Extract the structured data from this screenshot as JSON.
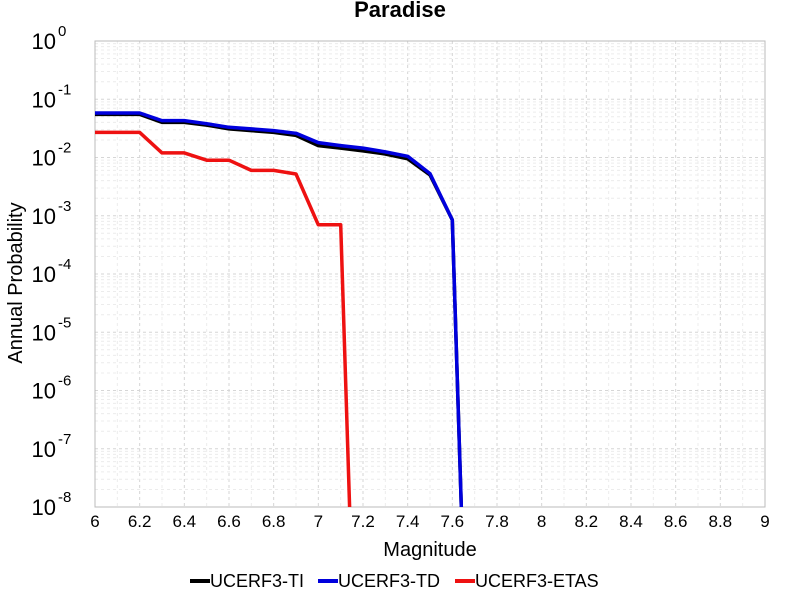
{
  "chart_data": {
    "type": "line",
    "title": "Paradise",
    "xlabel": "Magnitude",
    "ylabel": "Annual Probability",
    "xlim": [
      6,
      9
    ],
    "ylim": [
      1e-08,
      1
    ],
    "yscale": "log",
    "grid": true,
    "legend_position": "bottom",
    "x_ticks": [
      "6",
      "6.2",
      "6.4",
      "6.6",
      "6.8",
      "7",
      "7.2",
      "7.4",
      "7.6",
      "7.8",
      "8",
      "8.2",
      "8.4",
      "8.6",
      "8.8",
      "9"
    ],
    "y_ticks": [
      {
        "base": "10",
        "exp": "0"
      },
      {
        "base": "10",
        "exp": "-1"
      },
      {
        "base": "10",
        "exp": "-2"
      },
      {
        "base": "10",
        "exp": "-3"
      },
      {
        "base": "10",
        "exp": "-4"
      },
      {
        "base": "10",
        "exp": "-5"
      },
      {
        "base": "10",
        "exp": "-6"
      },
      {
        "base": "10",
        "exp": "-7"
      },
      {
        "base": "10",
        "exp": "-8"
      }
    ],
    "series": [
      {
        "name": "UCERF3-TI",
        "color": "#000000",
        "points": [
          [
            6.0,
            0.055
          ],
          [
            6.2,
            0.055
          ],
          [
            6.3,
            0.04
          ],
          [
            6.4,
            0.04
          ],
          [
            6.5,
            0.036
          ],
          [
            6.6,
            0.031
          ],
          [
            6.7,
            0.029
          ],
          [
            6.8,
            0.027
          ],
          [
            6.9,
            0.024
          ],
          [
            7.0,
            0.016
          ],
          [
            7.1,
            0.0145
          ],
          [
            7.2,
            0.013
          ],
          [
            7.3,
            0.0115
          ],
          [
            7.4,
            0.0095
          ],
          [
            7.5,
            0.005
          ],
          [
            7.6,
            0.00085
          ],
          [
            7.64,
            1e-08
          ]
        ]
      },
      {
        "name": "UCERF3-TD",
        "color": "#0000dd",
        "points": [
          [
            6.0,
            0.058
          ],
          [
            6.2,
            0.058
          ],
          [
            6.3,
            0.043
          ],
          [
            6.4,
            0.043
          ],
          [
            6.5,
            0.038
          ],
          [
            6.6,
            0.033
          ],
          [
            6.7,
            0.031
          ],
          [
            6.8,
            0.029
          ],
          [
            6.9,
            0.026
          ],
          [
            7.0,
            0.018
          ],
          [
            7.1,
            0.016
          ],
          [
            7.2,
            0.0145
          ],
          [
            7.3,
            0.0125
          ],
          [
            7.4,
            0.0105
          ],
          [
            7.5,
            0.0053
          ],
          [
            7.6,
            0.00085
          ],
          [
            7.64,
            1e-08
          ]
        ]
      },
      {
        "name": "UCERF3-ETAS",
        "color": "#ee1111",
        "points": [
          [
            6.0,
            0.027
          ],
          [
            6.2,
            0.027
          ],
          [
            6.3,
            0.012
          ],
          [
            6.4,
            0.012
          ],
          [
            6.5,
            0.009
          ],
          [
            6.6,
            0.009
          ],
          [
            6.7,
            0.006
          ],
          [
            6.8,
            0.006
          ],
          [
            6.9,
            0.0052
          ],
          [
            7.0,
            0.0007
          ],
          [
            7.1,
            0.0007
          ],
          [
            7.14,
            1e-08
          ]
        ]
      }
    ]
  }
}
